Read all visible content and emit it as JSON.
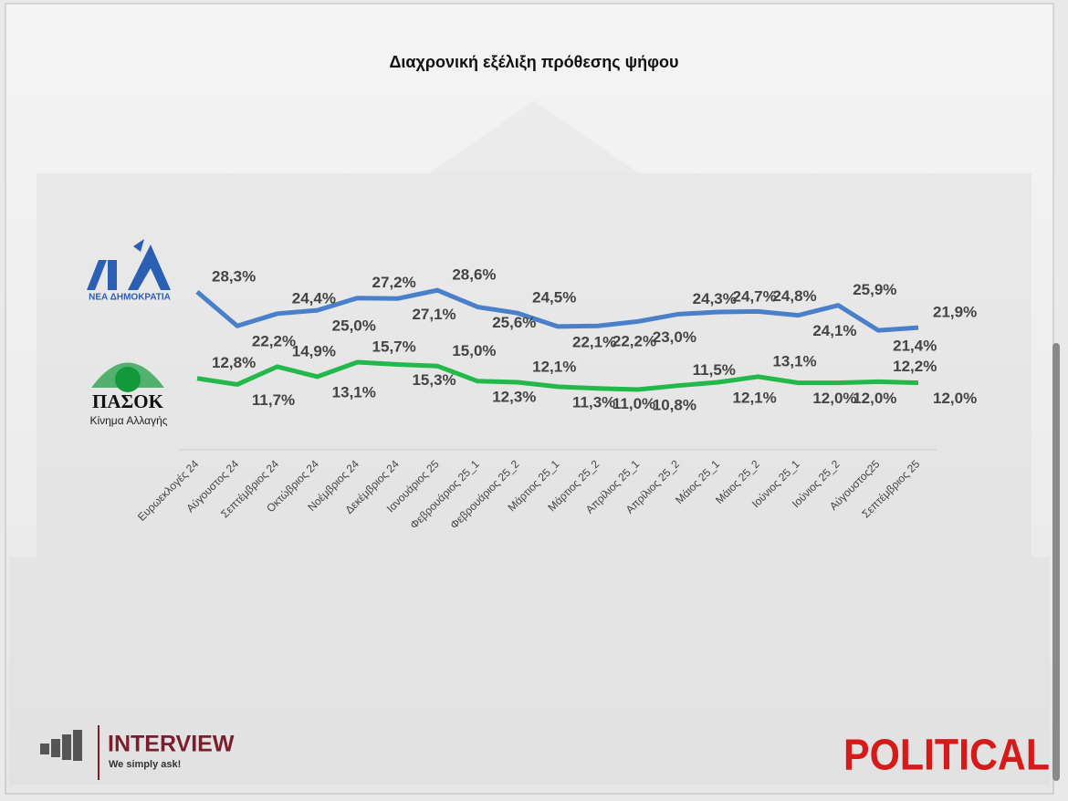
{
  "chart_data": {
    "type": "line",
    "title": "Διαχρονική εξέλιξη πρόθεσης ψήφου",
    "categories": [
      "Ευρωεκλογές 24",
      "Αύγουστος 24",
      "Σεπτέμβριος 24",
      "Οκτώβριος 24",
      "Νοέμβριος 24",
      "Δεκέμβριος 24",
      "Ιανουάριος 25",
      "Φεβρουάριος 25_1",
      "Φεβρουάριος 25_2",
      "Μάρτιος 25_1",
      "Μάρτιος 25_2",
      "Απρίλιος 25_1",
      "Απρίλιος 25_2",
      "Μάιος 25_1",
      "Μάιος 25_2",
      "Ιούνιος 25_1",
      "Ιούνιος 25_2",
      "Αύγουστος25",
      "Σεπτέμβριος 25"
    ],
    "ylim": [
      0,
      35
    ],
    "series": [
      {
        "name": "ΝΕΑ ΔΗΜΟΚΡΑΤΙΑ",
        "color": "#4a7fc9",
        "values": [
          28.3,
          22.2,
          24.4,
          25.0,
          27.2,
          27.1,
          28.6,
          25.6,
          24.5,
          22.1,
          22.2,
          23.0,
          24.3,
          24.7,
          24.8,
          24.1,
          25.9,
          21.4,
          21.9
        ],
        "value_labels": [
          "28,3%",
          "22,2%",
          "24,4%",
          "25,0%",
          "27,2%",
          "27,1%",
          "28,6%",
          "25,6%",
          "24,5%",
          "22,1%",
          "22,2%",
          "23,0%",
          "24,3%",
          "24,7%",
          "24,8%",
          "24,1%",
          "25,9%",
          "21,4%",
          "21,9%"
        ]
      },
      {
        "name": "ΠΑΣΟΚ",
        "color": "#22b84a",
        "values": [
          12.8,
          11.7,
          14.9,
          13.1,
          15.7,
          15.3,
          15.0,
          12.3,
          12.1,
          11.3,
          11.0,
          10.8,
          11.5,
          12.1,
          13.1,
          12.0,
          12.0,
          12.2,
          12.0
        ],
        "value_labels": [
          "12,8%",
          "11,7%",
          "14,9%",
          "13,1%",
          "15,7%",
          "15,3%",
          "15,0%",
          "12,3%",
          "12,1%",
          "11,3%",
          "11,0%",
          "10,8%",
          "11,5%",
          "12,1%",
          "13,1%",
          "12,0%",
          "12,0%",
          "12,2%",
          "12,0%"
        ]
      }
    ]
  },
  "logos": {
    "pasok_subtitle": "Κίνημα Αλλαγής",
    "pollster": "INTERVIEW",
    "pollster_slogan": "We simply ask!",
    "media": "POLITICAL"
  }
}
